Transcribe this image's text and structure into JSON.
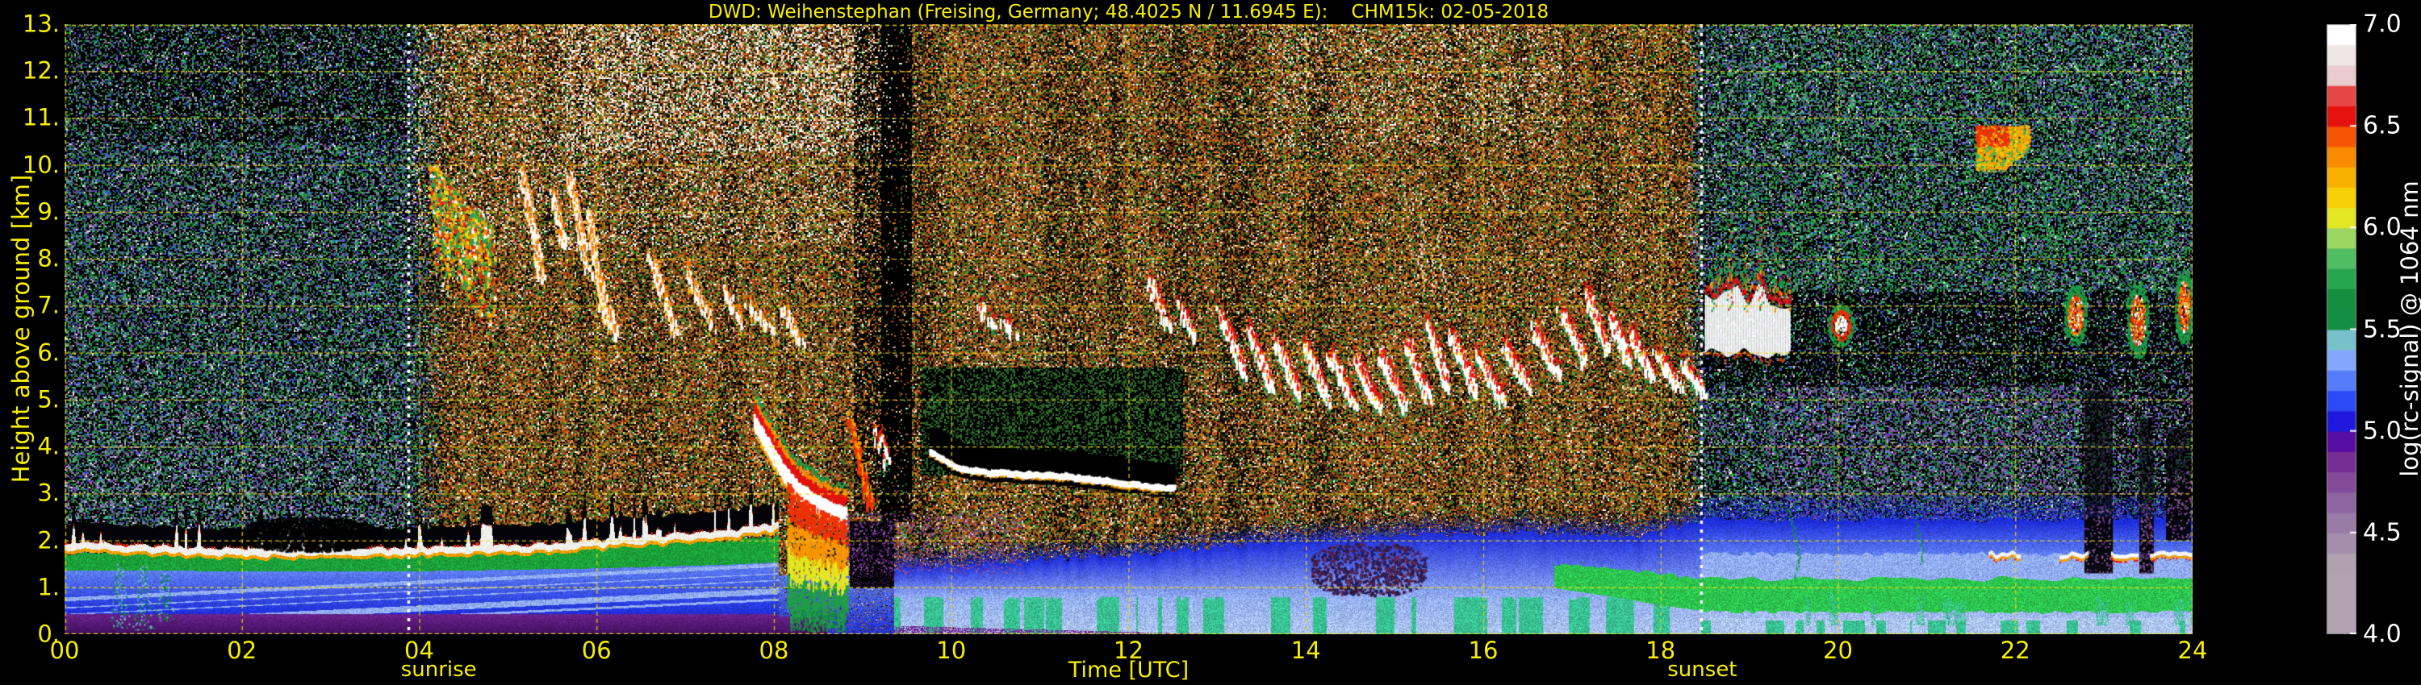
{
  "title": {
    "text": "DWD: Weihenstephan (Freising, Germany; 48.4025 N / 11.6945 E):    CHM15k: 02-05-2018",
    "station": "Weihenstephan (Freising, Germany)",
    "coordinates": "48.4025 N / 11.6945 E",
    "instrument": "CHM15k",
    "date": "02-05-2018"
  },
  "axes": {
    "x": {
      "label": "Time [UTC]",
      "min": 0,
      "max": 24,
      "ticks": [
        {
          "v": 0,
          "label": "00"
        },
        {
          "v": 2,
          "label": "02"
        },
        {
          "v": 4,
          "label": "04"
        },
        {
          "v": 6,
          "label": "06"
        },
        {
          "v": 8,
          "label": "08"
        },
        {
          "v": 10,
          "label": "10"
        },
        {
          "v": 12,
          "label": "12"
        },
        {
          "v": 14,
          "label": "14"
        },
        {
          "v": 16,
          "label": "16"
        },
        {
          "v": 18,
          "label": "18"
        },
        {
          "v": 20,
          "label": "20"
        },
        {
          "v": 22,
          "label": "22"
        },
        {
          "v": 24,
          "label": "24"
        }
      ]
    },
    "y": {
      "label": "Height above ground [km]",
      "min": 0,
      "max": 13,
      "ticks": [
        {
          "v": 13,
          "label": "13."
        },
        {
          "v": 12,
          "label": "12."
        },
        {
          "v": 11,
          "label": "11."
        },
        {
          "v": 10,
          "label": "10."
        },
        {
          "v": 9,
          "label": "9."
        },
        {
          "v": 8,
          "label": "8."
        },
        {
          "v": 7,
          "label": "7."
        },
        {
          "v": 6,
          "label": "6."
        },
        {
          "v": 5,
          "label": "5."
        },
        {
          "v": 4,
          "label": "4."
        },
        {
          "v": 3,
          "label": "3."
        },
        {
          "v": 2,
          "label": "2."
        },
        {
          "v": 1,
          "label": "1."
        },
        {
          "v": 0,
          "label": "0."
        }
      ]
    }
  },
  "colorbar": {
    "label": "log(rc-signal) @ 1064 nm",
    "min": 4.0,
    "max": 7.0,
    "ticks": [
      {
        "v": 7.0,
        "label": "7.0"
      },
      {
        "v": 6.5,
        "label": "6.5"
      },
      {
        "v": 6.0,
        "label": "6.0"
      },
      {
        "v": 5.5,
        "label": "5.5"
      },
      {
        "v": 5.0,
        "label": "5.0"
      },
      {
        "v": 4.5,
        "label": "4.5"
      },
      {
        "v": 4.0,
        "label": "4.0"
      }
    ]
  },
  "annotations": {
    "sunrise": {
      "label": "sunrise",
      "t": 3.877,
      "text_t": 4.22
    },
    "sunset": {
      "label": "sunset",
      "t": 18.456,
      "text_t": 18.47
    }
  },
  "chart_data": {
    "type": "heatmap",
    "title": "DWD Weihenstephan CHM15k ceilometer attenuated backscatter, 2018-05-02",
    "x_unit": "hours UTC",
    "x_range": [
      0,
      24
    ],
    "y_unit": "km above ground",
    "y_range": [
      0,
      13
    ],
    "value_unit": "log(rc-signal) @ 1064 nm",
    "value_range": [
      4.0,
      7.0
    ],
    "grid": {
      "x_step_hours": 2,
      "y_step_km": 1,
      "style": "yellow dashed",
      "color": "#e6d400"
    },
    "colormap": {
      "bands": 30,
      "stops": [
        [
          4.0,
          "#b1a3b1"
        ],
        [
          4.34,
          "#b1a3b1"
        ],
        [
          4.52,
          "#9d82ab"
        ],
        [
          4.7,
          "#8a5a9e"
        ],
        [
          4.84,
          "#783093"
        ],
        [
          4.94,
          "#5f0f9d"
        ],
        [
          5.0,
          "#3909c0"
        ],
        [
          5.06,
          "#1b1ce6"
        ],
        [
          5.16,
          "#2e51f8"
        ],
        [
          5.26,
          "#5c81fa"
        ],
        [
          5.36,
          "#89abfb"
        ],
        [
          5.43,
          "#a9c6f3"
        ],
        [
          5.47,
          "#46bba6"
        ],
        [
          5.52,
          "#1a9f53"
        ],
        [
          5.57,
          "#108338"
        ],
        [
          5.66,
          "#169140"
        ],
        [
          5.76,
          "#2aa850"
        ],
        [
          5.86,
          "#55c065"
        ],
        [
          5.93,
          "#8dd36e"
        ],
        [
          5.99,
          "#bce24b"
        ],
        [
          6.04,
          "#e2e928"
        ],
        [
          6.11,
          "#f6dd0e"
        ],
        [
          6.21,
          "#f8bf03"
        ],
        [
          6.31,
          "#f99c00"
        ],
        [
          6.41,
          "#f97200"
        ],
        [
          6.48,
          "#f33e05"
        ],
        [
          6.55,
          "#e6120f"
        ],
        [
          6.63,
          "#e41511"
        ],
        [
          6.7,
          "#ecc3c5"
        ],
        [
          6.82,
          "#e6dad5"
        ],
        [
          6.9,
          "#ffffff"
        ],
        [
          7.0,
          "#ffffff"
        ]
      ]
    },
    "sun": {
      "sunrise_t": 3.877,
      "sunset_t": 18.456,
      "line_style": "white dotted vertical"
    },
    "noise": {
      "day_fill_p": 0.86,
      "night_fill_p": 0.54,
      "night_palette": [
        [
          0.46,
          ""
        ],
        [
          0.14,
          "#1c6f30"
        ],
        [
          0.09,
          "#2f9c48"
        ],
        [
          0.05,
          "#2f9d86"
        ],
        [
          0.06,
          "#3752d6"
        ],
        [
          0.08,
          "#6c3f93"
        ],
        [
          0.05,
          "#8c78ae"
        ],
        [
          0.04,
          "#c7cec7"
        ],
        [
          0.03,
          "#52527a"
        ]
      ],
      "day_palette": [
        [
          0.15,
          ""
        ],
        [
          0.13,
          "#80441a"
        ],
        [
          0.13,
          "#a85a1c"
        ],
        [
          0.11,
          "#c9751f"
        ],
        [
          0.07,
          "#3f902f"
        ],
        [
          0.09,
          "#256d24"
        ],
        [
          0.07,
          "#e5dccd"
        ],
        [
          0.05,
          "#ca9a4a"
        ],
        [
          0.04,
          "#b93413"
        ],
        [
          0.06,
          "#171106"
        ],
        [
          0.1,
          "#5d3315"
        ]
      ],
      "extra_speckle": [
        {
          "t0": 19.2,
          "t1": 24,
          "h0": 2.3,
          "h1": 5.4,
          "color": "#7b4a9e",
          "p": 0.14
        },
        {
          "t0": 0,
          "t1": 3.85,
          "h0": 2.1,
          "h1": 4.8,
          "color": "#9a86b4",
          "p": 0.07
        },
        {
          "t0": 18.6,
          "t1": 24,
          "h0": 7.3,
          "h1": 13,
          "color": "#2f9c48",
          "p": 0.1
        },
        {
          "t0": 3.9,
          "t1": 9.35,
          "h0": 8.3,
          "h1": 13,
          "color": "#efe7dc",
          "p": 0.1
        },
        {
          "t0": 5.6,
          "t1": 9.35,
          "h0": 10.3,
          "h1": 13,
          "color": "#f3ece4",
          "p": 0.18
        },
        {
          "t0": 13.6,
          "t1": 16.9,
          "h0": 10.4,
          "h1": 13,
          "color": "#e9e2d6",
          "p": 0.08
        }
      ],
      "dark_zones": [
        {
          "t0": 9.65,
          "t1": 12.6,
          "h0": 3.4,
          "h1": 5.7,
          "p": 0.55,
          "cool": true
        },
        {
          "t0": 9.2,
          "t1": 9.55,
          "h0": 2.4,
          "h1": 13,
          "p": 0.85
        },
        {
          "t0": 8.9,
          "t1": 9.2,
          "h0": 2.6,
          "h1": 13,
          "p": 0.5
        },
        {
          "t0": 18.47,
          "t1": 24,
          "h0": 5.3,
          "h1": 7.3,
          "p": 0.45
        },
        {
          "t0": 0,
          "t1": 3.85,
          "h0": 10.5,
          "h1": 13,
          "p": 0.3
        },
        {
          "t0": 22.7,
          "t1": 24,
          "h0": 2.2,
          "h1": 5.4,
          "p": 0.3
        }
      ]
    },
    "boundary_layer": {
      "cap_day": [
        [
          0,
          1.88
        ],
        [
          1,
          1.8
        ],
        [
          2,
          1.73
        ],
        [
          3.2,
          1.74
        ],
        [
          4.5,
          1.8
        ],
        [
          5.5,
          1.86
        ],
        [
          6.3,
          1.97
        ],
        [
          7.0,
          2.07
        ],
        [
          7.6,
          2.17
        ],
        [
          8.05,
          2.3
        ]
      ],
      "green_day": [
        [
          0,
          1.38,
          1.68
        ],
        [
          2,
          1.36,
          1.6
        ],
        [
          4,
          1.36,
          1.62
        ],
        [
          6,
          1.42,
          1.78
        ],
        [
          7.5,
          1.5,
          1.95
        ],
        [
          8.05,
          1.55,
          2.05
        ]
      ],
      "purple_top_day": 0.45,
      "blue_top_pm": [
        [
          9.35,
          1.3
        ],
        [
          10.5,
          1.45
        ],
        [
          11.5,
          1.55
        ],
        [
          12.5,
          1.68
        ],
        [
          13.5,
          1.85
        ],
        [
          14.5,
          1.98
        ],
        [
          15.6,
          2.05
        ],
        [
          16.8,
          2.05
        ],
        [
          17.8,
          2.0
        ],
        [
          18.45,
          2.35
        ]
      ],
      "green_pm": [
        [
          16.8,
          1.0,
          1.45
        ],
        [
          17.5,
          0.8,
          1.35
        ],
        [
          18.05,
          0.62,
          1.22
        ],
        [
          18.45,
          0.52,
          1.15
        ]
      ],
      "night": {
        "lb1_top": 0.36,
        "green_base": 0.45,
        "green_top": 1.12,
        "lb2_top": 1.68,
        "blue_top": 2.35,
        "fade_top": 3.1
      }
    },
    "features": {
      "dawn_patch": {
        "t0": 4.15,
        "t1": 4.8,
        "h0": 7.4,
        "h1": 10.0
      },
      "streaks_white": [
        [
          5.15,
          9.9,
          5.38,
          7.5
        ],
        [
          5.5,
          9.4,
          5.62,
          8.3
        ],
        [
          5.68,
          9.8,
          5.9,
          7.7
        ],
        [
          5.9,
          9.0,
          6.08,
          6.7
        ],
        [
          6.02,
          7.5,
          6.22,
          6.35
        ],
        [
          6.6,
          8.05,
          6.88,
          6.45
        ],
        [
          7.02,
          7.8,
          7.3,
          6.5
        ],
        [
          7.45,
          7.35,
          7.62,
          6.6
        ],
        [
          7.7,
          7.05,
          7.95,
          6.5
        ],
        [
          8.1,
          6.95,
          8.3,
          6.2
        ],
        [
          10.3,
          7.0,
          10.48,
          6.5
        ],
        [
          10.58,
          6.72,
          10.72,
          6.38
        ],
        [
          12.22,
          7.55,
          12.44,
          6.5
        ],
        [
          12.56,
          7.05,
          12.74,
          6.32
        ],
        [
          9.14,
          4.35,
          9.26,
          3.65
        ]
      ],
      "cloud_band": [
        [
          13.02,
          6.9,
          13.3,
          5.55
        ],
        [
          13.34,
          6.5,
          13.6,
          5.3
        ],
        [
          13.64,
          6.3,
          13.92,
          5.1
        ],
        [
          13.98,
          6.2,
          14.22,
          5.0
        ],
        [
          14.26,
          6.0,
          14.52,
          4.92
        ],
        [
          14.55,
          5.9,
          14.8,
          4.85
        ],
        [
          14.82,
          6.0,
          15.1,
          4.9
        ],
        [
          15.12,
          6.25,
          15.36,
          5.1
        ],
        [
          15.38,
          6.6,
          15.58,
          5.3
        ],
        [
          15.62,
          6.45,
          15.9,
          5.2
        ],
        [
          15.92,
          6.05,
          16.2,
          5.0
        ],
        [
          16.22,
          6.2,
          16.5,
          5.3
        ],
        [
          16.55,
          6.6,
          16.82,
          5.6
        ],
        [
          16.86,
          6.95,
          17.12,
          5.9
        ],
        [
          17.16,
          7.3,
          17.38,
          6.1
        ],
        [
          17.42,
          6.85,
          17.62,
          5.85
        ],
        [
          17.66,
          6.45,
          17.9,
          5.5
        ],
        [
          17.94,
          6.05,
          18.2,
          5.3
        ],
        [
          18.24,
          5.85,
          18.46,
          5.2
        ]
      ],
      "band_columns": [
        [
          15.3,
          7.35,
          8.95
        ],
        [
          15.45,
          7.5,
          8.5
        ],
        [
          15.55,
          7.3,
          8.1
        ]
      ],
      "precipitation": {
        "curve": [
          [
            7.78,
            4.55
          ],
          [
            7.95,
            4.0
          ],
          [
            8.1,
            3.5
          ],
          [
            8.3,
            3.05
          ],
          [
            8.5,
            2.8
          ],
          [
            8.7,
            2.62
          ],
          [
            8.82,
            2.55
          ]
        ],
        "second_streak": [
          [
            8.86,
            4.55
          ],
          [
            8.98,
            3.5
          ],
          [
            9.08,
            2.7
          ]
        ],
        "shafts_t": [
          8.16,
          8.82
        ],
        "shaft_bottom_km": 0.15
      },
      "mid_line": {
        "pts": [
          [
            9.75,
            3.95
          ],
          [
            10.05,
            3.6
          ],
          [
            10.4,
            3.5
          ],
          [
            11.3,
            3.42
          ],
          [
            12.45,
            3.15
          ]
        ],
        "shadow_km": 0.45
      },
      "evening_cloud": {
        "t0": 18.5,
        "t1": 19.45,
        "base": 5.85,
        "top": 6.9,
        "spikes": [
          [
            18.6,
            8.0
          ],
          [
            18.78,
            8.85
          ],
          [
            18.95,
            8.3
          ],
          [
            19.12,
            9.0
          ],
          [
            19.3,
            8.4
          ],
          [
            19.42,
            7.8
          ]
        ]
      },
      "evening_blob": {
        "t0": 19.88,
        "t1": 20.18,
        "h0": 6.15,
        "h1": 7.05
      },
      "orange_patch": {
        "t0": 21.55,
        "t1": 22.15,
        "h0": 9.9,
        "h1": 10.85
      },
      "late_patches": [
        [
          22.55,
          22.8,
          6.2,
          7.45
        ],
        [
          23.25,
          23.5,
          5.9,
          7.5
        ],
        [
          23.8,
          24.0,
          6.2,
          7.8
        ]
      ],
      "green_wisps": [
        [
          20.22,
          7.4,
          8.7
        ],
        [
          22.35,
          8.2,
          9.6
        ],
        [
          22.5,
          8.4,
          9.3
        ],
        [
          19.5,
          1.2,
          2.8
        ],
        [
          20.9,
          1.5,
          2.4
        ]
      ],
      "green_plumes_morning": [
        [
          0.62,
          0.15,
          1.5
        ],
        [
          0.88,
          0.1,
          1.45
        ],
        [
          1.12,
          0.3,
          1.3
        ]
      ],
      "dark_pocket": {
        "t0": 1.95,
        "t1": 3.55,
        "h0": 1.78,
        "h1": 2.5
      },
      "maroon_blob": {
        "t0": 14.05,
        "t1": 15.35,
        "h0": 0.85,
        "h1": 1.95
      },
      "purple_post_rain": {
        "t0": 8.8,
        "t1": 10.8,
        "h0": 1.3,
        "h1": 2.6
      },
      "dark_columns": [
        [
          22.78,
          23.1,
          1.3,
          5.2
        ],
        [
          23.4,
          23.56,
          1.3,
          4.6
        ],
        [
          23.7,
          23.98,
          2.0,
          4.4
        ]
      ],
      "night_cap_segments": [
        [
          21.7,
          22.05
        ],
        [
          22.5,
          22.82
        ],
        [
          23.08,
          23.38
        ],
        [
          23.52,
          24.0
        ]
      ],
      "night_cap_height_km": 1.62
    }
  }
}
